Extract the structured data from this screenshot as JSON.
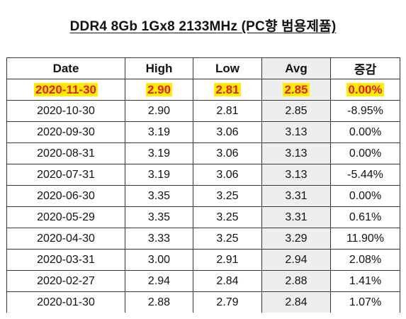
{
  "title": "DDR4 8Gb 1Gx8 2133MHz (PC향 범용제품)",
  "colors": {
    "highlight_bg": "#ffee00",
    "highlight_text": "#e8191b",
    "avg_column_bg": "#eeeeee"
  },
  "table": {
    "headers": {
      "date": "Date",
      "high": "High",
      "low": "Low",
      "avg": "Avg",
      "change": "증감"
    },
    "rows": [
      {
        "date": "2020-11-30",
        "high": "2.90",
        "low": "2.81",
        "avg": "2.85",
        "change": "0.00%",
        "highlighted": true
      },
      {
        "date": "2020-10-30",
        "high": "2.90",
        "low": "2.81",
        "avg": "2.85",
        "change": "-8.95%"
      },
      {
        "date": "2020-09-30",
        "high": "3.19",
        "low": "3.06",
        "avg": "3.13",
        "change": "0.00%"
      },
      {
        "date": "2020-08-31",
        "high": "3.19",
        "low": "3.06",
        "avg": "3.13",
        "change": "0.00%"
      },
      {
        "date": "2020-07-31",
        "high": "3.19",
        "low": "3.06",
        "avg": "3.13",
        "change": "-5.44%"
      },
      {
        "date": "2020-06-30",
        "high": "3.35",
        "low": "3.25",
        "avg": "3.31",
        "change": "0.00%"
      },
      {
        "date": "2020-05-29",
        "high": "3.35",
        "low": "3.25",
        "avg": "3.31",
        "change": "0.61%"
      },
      {
        "date": "2020-04-30",
        "high": "3.33",
        "low": "3.25",
        "avg": "3.29",
        "change": "11.90%"
      },
      {
        "date": "2020-03-31",
        "high": "3.00",
        "low": "2.91",
        "avg": "2.94",
        "change": "2.08%"
      },
      {
        "date": "2020-02-27",
        "high": "2.94",
        "low": "2.84",
        "avg": "2.88",
        "change": "1.41%"
      },
      {
        "date": "2020-01-30",
        "high": "2.88",
        "low": "2.79",
        "avg": "2.84",
        "change": "1.07%"
      }
    ]
  }
}
